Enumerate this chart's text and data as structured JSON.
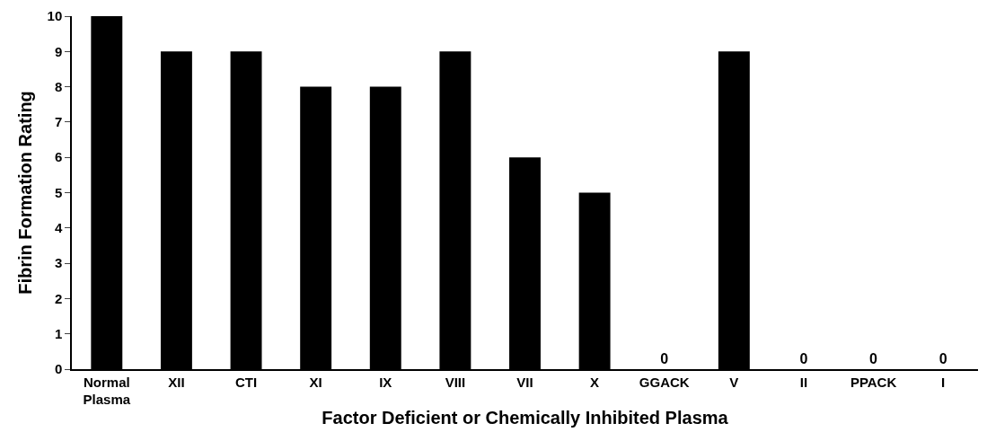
{
  "chart_data": {
    "type": "bar",
    "xlabel": "Factor Deficient or Chemically Inhibited Plasma",
    "ylabel": "Fibrin Formation Rating",
    "categories": [
      "Normal\nPlasma",
      "XII",
      "CTI",
      "XI",
      "IX",
      "VIII",
      "VII",
      "X",
      "GGACK",
      "V",
      "II",
      "PPACK",
      "I"
    ],
    "values": [
      10,
      9,
      9,
      8,
      8,
      9,
      6,
      5,
      0,
      9,
      0,
      0,
      0
    ],
    "value_labels": [
      null,
      null,
      null,
      null,
      null,
      null,
      null,
      null,
      "0",
      null,
      "0",
      "0",
      "0"
    ],
    "color": "#000000",
    "ylim": [
      0,
      10
    ],
    "yticks": [
      0,
      1,
      2,
      3,
      4,
      5,
      6,
      7,
      8,
      9,
      10
    ],
    "legend": false
  }
}
